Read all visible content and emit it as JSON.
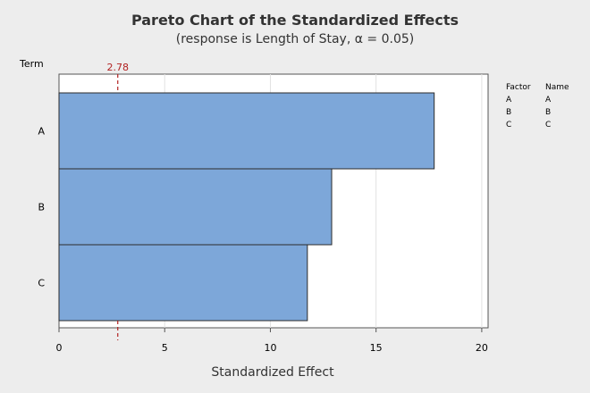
{
  "chart_data": {
    "type": "bar",
    "orientation": "horizontal",
    "title": "Pareto Chart of the Standardized Effects",
    "subtitle": "(response is Length of Stay, α = 0.05)",
    "xlabel": "Standardized Effect",
    "ylabel": "Term",
    "xlim": [
      0,
      20.3
    ],
    "xticks": [
      0,
      5,
      10,
      15,
      20
    ],
    "categories": [
      "A",
      "B",
      "C"
    ],
    "values": [
      17.75,
      12.9,
      11.75
    ],
    "reference_line": {
      "value": 2.78,
      "label": "2.78",
      "style": "dashed",
      "color": "#b22222"
    },
    "grid": true,
    "legend": {
      "placement": "right",
      "headers": [
        "Factor",
        "Name"
      ],
      "rows": [
        [
          "A",
          "A"
        ],
        [
          "B",
          "B"
        ],
        [
          "C",
          "C"
        ]
      ]
    },
    "colors": {
      "bar_fill": "#7da7d9",
      "bar_stroke": "#2b2b2b",
      "background": "#ededed",
      "plot_bg": "#ffffff"
    }
  }
}
